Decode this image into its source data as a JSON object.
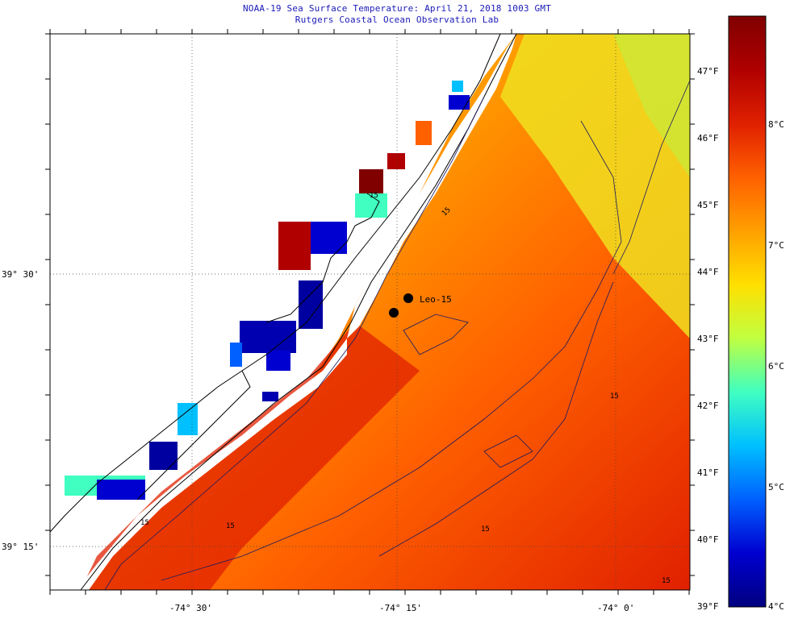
{
  "header": {
    "title": "NOAA-19 Sea Surface Temperature:  April 21, 2018 1003 GMT",
    "subtitle": "Rutgers Coastal Ocean Observation Lab"
  },
  "map": {
    "lat_labels": [
      "39° 30'",
      "39° 15'"
    ],
    "lon_labels": [
      "-74° 30'",
      "-74° 15'",
      "-74° 0'"
    ],
    "station_label": "Leo-15",
    "contour_labels": [
      "15",
      "15",
      "15",
      "15",
      "15",
      "15",
      "15"
    ]
  },
  "colorbar": {
    "fahrenheit_labels": [
      "47°F",
      "46°F",
      "45°F",
      "44°F",
      "43°F",
      "42°F",
      "41°F",
      "40°F",
      "39°F"
    ],
    "celsius_labels": [
      "8°C",
      "7°C",
      "6°C",
      "5°C",
      "4°C"
    ],
    "colors": [
      "#800000",
      "#b00000",
      "#e02000",
      "#ff6000",
      "#ffa000",
      "#ffe000",
      "#c0ff40",
      "#40ffc0",
      "#00c0ff",
      "#0060ff",
      "#0000d0",
      "#000080"
    ]
  },
  "legend_colors": {
    "land": "#ffffff",
    "coast_line": "#000000",
    "title_text": "#1a1ab8"
  }
}
